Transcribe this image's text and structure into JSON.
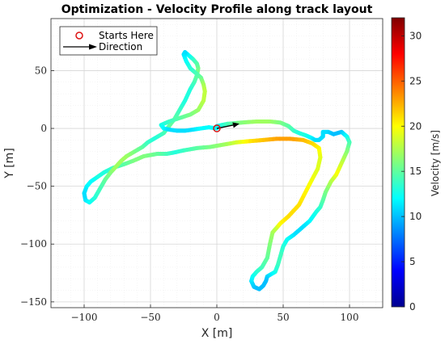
{
  "chart_data": {
    "type": "line",
    "title": "Optimization - Velocity Profile along track layout",
    "xlabel": "X [m]",
    "ylabel": "Y [m]",
    "xlim": [
      -125,
      125
    ],
    "ylim": [
      -155,
      95
    ],
    "x_ticks": [
      -100,
      -50,
      0,
      50,
      100
    ],
    "y_ticks": [
      50,
      0,
      -50,
      -100,
      -150
    ],
    "x_tick_labels": [
      "−100",
      "−50",
      "0",
      "50",
      "100"
    ],
    "y_tick_labels": [
      "50",
      "0",
      "−50",
      "−100",
      "−150"
    ],
    "grid": true,
    "legend_position": "top-left",
    "legend": [
      {
        "label": "Starts Here",
        "marker": "circle",
        "color": "#dd1111"
      },
      {
        "label": "Direction",
        "marker": "arrow",
        "color": "#000000"
      }
    ],
    "start_point": [
      0,
      0
    ],
    "direction_vector": [
      17,
      4
    ],
    "colorbar": {
      "label": "Velocity [m/s]",
      "min": 0,
      "max": 32,
      "ticks": [
        0,
        5,
        10,
        15,
        20,
        25,
        30
      ],
      "colormap": [
        "#00008f",
        "#0000ff",
        "#007fff",
        "#00ffff",
        "#7fff7f",
        "#ffff00",
        "#ff7f00",
        "#ff0000",
        "#7f0000"
      ]
    },
    "series": [
      {
        "x": [
          0,
          8,
          18,
          30,
          40,
          48,
          54,
          58,
          62,
          67,
          71,
          74,
          77,
          80,
          80,
          84,
          88,
          94,
          98,
          100,
          98,
          94,
          90,
          86,
          82,
          80,
          78,
          75,
          70,
          64,
          58,
          53,
          50,
          48,
          46,
          44,
          41,
          38,
          37,
          35,
          32,
          28,
          26,
          27,
          30,
          34,
          38,
          40,
          42,
          45,
          48,
          54,
          62,
          70,
          76,
          78,
          77,
          72,
          65,
          55,
          45,
          35,
          25,
          15,
          5,
          -5,
          -15,
          -25,
          -33,
          -38,
          -45,
          -55,
          -63,
          -70,
          -78,
          -85,
          -90,
          -95,
          -98,
          -100,
          -99,
          -96,
          -92,
          -88,
          -84,
          -80,
          -76,
          -72,
          -68,
          -62,
          -56,
          -52,
          -46,
          -40,
          -36,
          -32,
          -28,
          -24,
          -20,
          -17,
          -15,
          -14,
          -15,
          -18,
          -20,
          -22,
          -24,
          -25,
          -23,
          -20,
          -16,
          -12,
          -10,
          -9,
          -10,
          -14,
          -20,
          -28,
          -36,
          -42,
          -40,
          -36,
          -30,
          -24,
          -18,
          -12,
          -6,
          0
        ],
        "y": [
          2,
          4,
          5,
          6,
          6,
          5,
          2,
          -2,
          -4,
          -6,
          -8,
          -10,
          -10,
          -7,
          -3,
          -3,
          -5,
          -3,
          -7,
          -12,
          -20,
          -30,
          -40,
          -46,
          -55,
          -62,
          -68,
          -72,
          -80,
          -86,
          -92,
          -96,
          -102,
          -110,
          -118,
          -124,
          -126,
          -128,
          -132,
          -136,
          -139,
          -137,
          -132,
          -128,
          -124,
          -120,
          -112,
          -100,
          -90,
          -86,
          -82,
          -76,
          -66,
          -48,
          -35,
          -25,
          -17,
          -13,
          -10,
          -9,
          -9,
          -10,
          -11,
          -12,
          -14,
          -16,
          -17,
          -19,
          -21,
          -22,
          -22,
          -24,
          -28,
          -31,
          -34,
          -38,
          -42,
          -46,
          -50,
          -56,
          -62,
          -64,
          -60,
          -52,
          -44,
          -38,
          -33,
          -28,
          -24,
          -20,
          -16,
          -12,
          -8,
          -4,
          2,
          8,
          16,
          24,
          34,
          40,
          46,
          52,
          56,
          60,
          62,
          64,
          66,
          64,
          58,
          52,
          48,
          44,
          38,
          32,
          24,
          16,
          12,
          9,
          6,
          3,
          0,
          -1,
          -2,
          -2,
          -1,
          0,
          1,
          0
        ],
        "v": [
          12,
          14,
          16,
          17,
          17,
          16,
          15,
          14,
          13,
          13,
          12,
          11,
          11,
          11,
          11,
          11,
          10,
          10,
          12,
          14,
          16,
          18,
          20,
          18,
          16,
          15,
          14,
          13,
          12,
          11,
          11,
          12,
          13,
          14,
          14,
          13,
          12,
          11,
          10,
          10,
          10,
          10,
          11,
          12,
          13,
          14,
          15,
          16,
          17,
          18,
          20,
          21,
          21,
          20,
          19,
          19,
          20,
          21,
          22,
          23,
          23,
          22,
          21,
          19,
          17,
          16,
          15,
          14,
          13,
          14,
          15,
          16,
          16,
          15,
          14,
          13,
          13,
          12,
          12,
          11,
          11,
          12,
          13,
          14,
          15,
          16,
          17,
          17,
          17,
          16,
          15,
          14,
          13,
          14,
          15,
          15,
          14,
          13,
          13,
          14,
          15,
          16,
          15,
          14,
          13,
          12,
          11,
          11,
          12,
          13,
          14,
          15,
          17,
          18,
          18,
          17,
          16,
          15,
          14,
          13,
          12,
          11,
          11,
          11,
          11,
          12,
          12,
          12
        ]
      }
    ]
  }
}
